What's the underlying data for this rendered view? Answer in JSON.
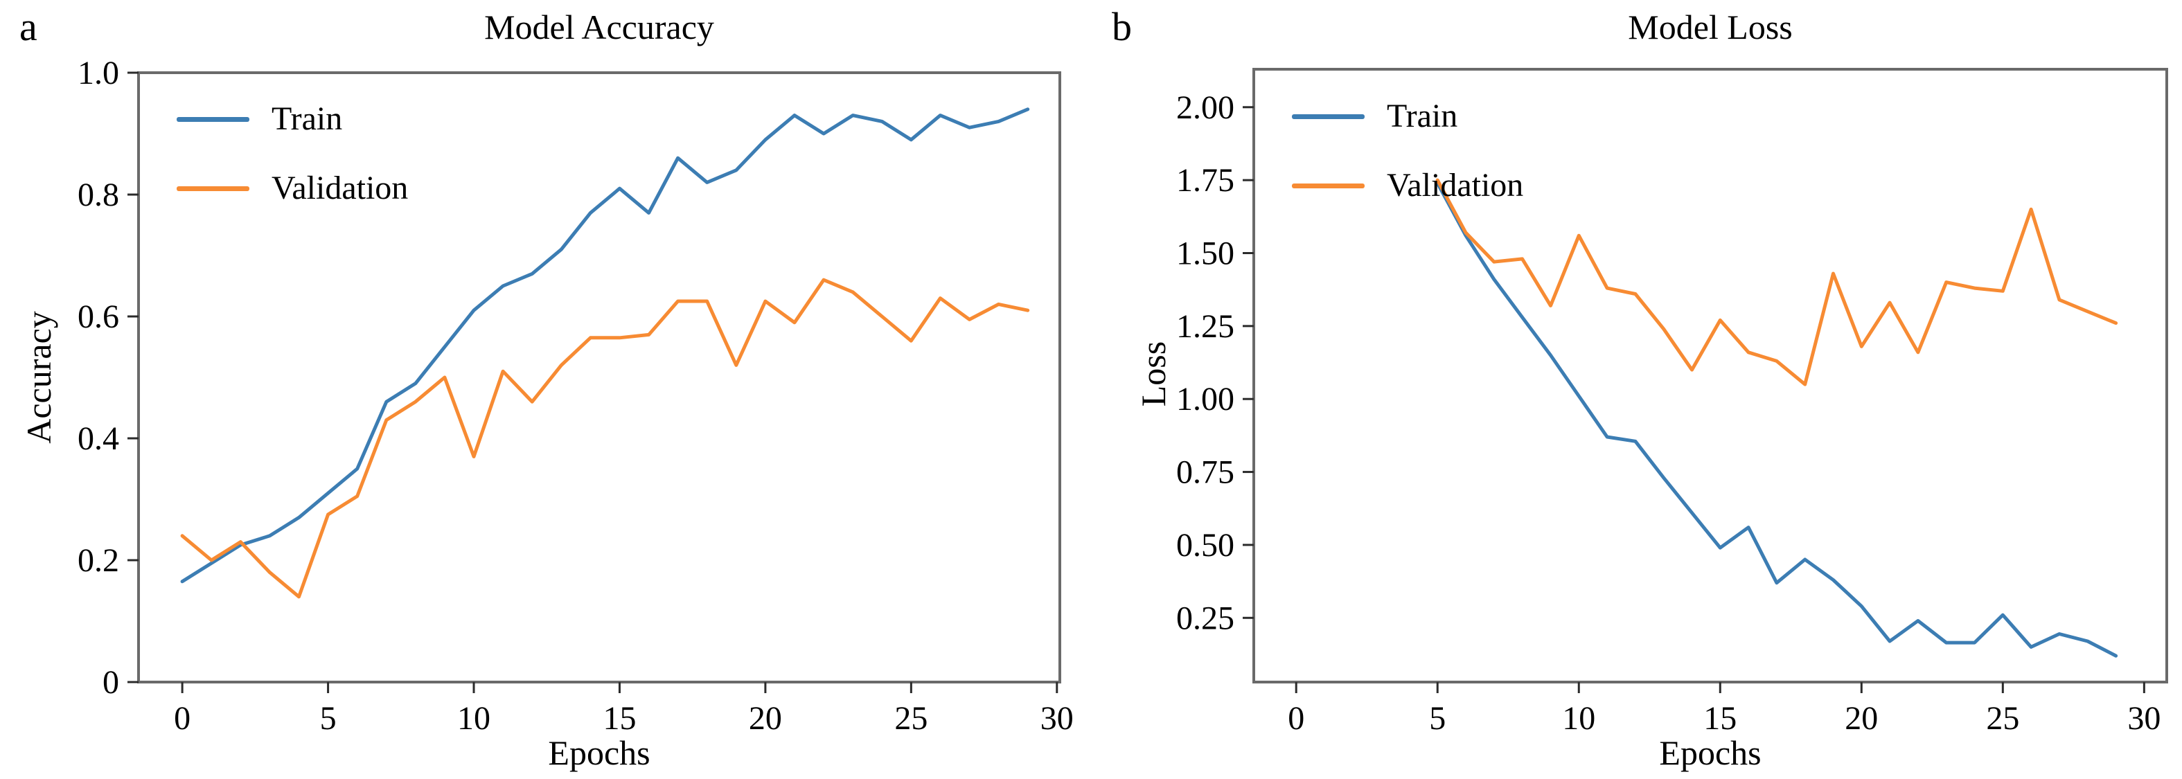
{
  "figure": {
    "background": "#ffffff",
    "panels": [
      {
        "letter": "a"
      },
      {
        "letter": "b"
      }
    ]
  },
  "colors": {
    "train": "#3c7db3",
    "validation": "#f78b33",
    "frame": "#6a6a6a",
    "tick": "#2b2b2b",
    "text": "#000000"
  },
  "chart_data": [
    {
      "type": "line",
      "title": "Model Accuracy",
      "xlabel": "Epochs",
      "ylabel": "Accuracy",
      "xlim": [
        -1.5,
        30.1
      ],
      "ylim": [
        0.0,
        1.0
      ],
      "grid": false,
      "legend_position": "upper-left",
      "xticks": [
        0,
        5,
        10,
        15,
        20,
        25,
        30
      ],
      "xtick_labels": [
        "0",
        "5",
        "10",
        "15",
        "20",
        "25",
        "30"
      ],
      "yticks": [
        0,
        0.2,
        0.4,
        0.6,
        0.8,
        1.0
      ],
      "ytick_labels": [
        "0",
        "0.2",
        "0.4",
        "0.6",
        "0.8",
        "1.0"
      ],
      "series": [
        {
          "name": "Train",
          "color_key": "train",
          "x": [
            0,
            1,
            2,
            3,
            4,
            5,
            6,
            7,
            8,
            9,
            10,
            11,
            12,
            13,
            14,
            15,
            16,
            17,
            18,
            19,
            20,
            21,
            22,
            23,
            24,
            25,
            26,
            27,
            28,
            29
          ],
          "values": [
            0.165,
            0.195,
            0.225,
            0.24,
            0.27,
            0.31,
            0.35,
            0.46,
            0.49,
            0.55,
            0.61,
            0.65,
            0.67,
            0.71,
            0.77,
            0.81,
            0.77,
            0.86,
            0.82,
            0.84,
            0.89,
            0.93,
            0.9,
            0.93,
            0.92,
            0.89,
            0.93,
            0.91,
            0.92,
            0.94
          ]
        },
        {
          "name": "Validation",
          "color_key": "validation",
          "x": [
            0,
            1,
            2,
            3,
            4,
            5,
            6,
            7,
            8,
            9,
            10,
            11,
            12,
            13,
            14,
            15,
            16,
            17,
            18,
            19,
            20,
            21,
            22,
            23,
            24,
            25,
            26,
            27,
            28,
            29
          ],
          "values": [
            0.24,
            0.2,
            0.23,
            0.18,
            0.14,
            0.275,
            0.305,
            0.43,
            0.46,
            0.5,
            0.37,
            0.51,
            0.46,
            0.52,
            0.565,
            0.565,
            0.57,
            0.625,
            0.625,
            0.52,
            0.625,
            0.59,
            0.66,
            0.64,
            0.6,
            0.56,
            0.63,
            0.595,
            0.62,
            0.61
          ]
        }
      ]
    },
    {
      "type": "line",
      "title": "Model Loss",
      "xlabel": "Epochs",
      "ylabel": "Loss",
      "xlim": [
        -1.5,
        30.8
      ],
      "ylim": [
        0.03,
        2.13
      ],
      "grid": false,
      "legend_position": "upper-left",
      "xticks": [
        0,
        5,
        10,
        15,
        20,
        25,
        30
      ],
      "xtick_labels": [
        "0",
        "5",
        "10",
        "15",
        "20",
        "25",
        "30"
      ],
      "yticks": [
        0.25,
        0.5,
        0.75,
        1.0,
        1.25,
        1.5,
        1.75,
        2.0
      ],
      "ytick_labels": [
        "0.25",
        "0.50",
        "0.75",
        "1.00",
        "1.25",
        "1.50",
        "1.75",
        "2.00"
      ],
      "series": [
        {
          "name": "Train",
          "color_key": "train",
          "x": [
            5,
            6,
            7,
            8,
            9,
            10,
            11,
            12,
            13,
            14,
            15,
            16,
            17,
            18,
            19,
            20,
            21,
            22,
            23,
            24,
            25,
            26,
            27,
            28,
            29
          ],
          "values": [
            1.74,
            1.56,
            1.41,
            1.28,
            1.15,
            1.01,
            0.87,
            0.855,
            0.73,
            0.61,
            0.49,
            0.56,
            0.37,
            0.45,
            0.38,
            0.29,
            0.17,
            0.24,
            0.165,
            0.165,
            0.26,
            0.15,
            0.195,
            0.17,
            0.12
          ]
        },
        {
          "name": "Validation",
          "color_key": "validation",
          "x": [
            5,
            6,
            7,
            8,
            9,
            10,
            11,
            12,
            13,
            14,
            15,
            16,
            17,
            18,
            19,
            20,
            21,
            22,
            23,
            24,
            25,
            26,
            27,
            28,
            29
          ],
          "values": [
            1.75,
            1.57,
            1.47,
            1.48,
            1.32,
            1.56,
            1.38,
            1.36,
            1.24,
            1.1,
            1.27,
            1.16,
            1.13,
            1.05,
            1.43,
            1.18,
            1.33,
            1.16,
            1.4,
            1.38,
            1.37,
            1.65,
            1.34,
            1.3,
            1.26
          ]
        }
      ]
    }
  ]
}
